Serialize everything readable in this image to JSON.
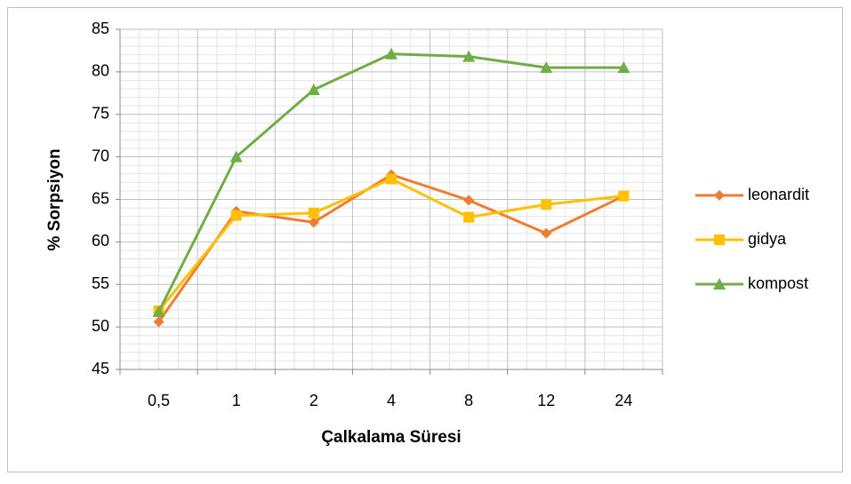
{
  "chart_data": {
    "type": "line",
    "xlabel": "Çalkalama Süresi",
    "ylabel": "% Sorpsiyon",
    "categories": [
      "0,5",
      "1",
      "2",
      "4",
      "8",
      "12",
      "24"
    ],
    "series": [
      {
        "name": "leonardit",
        "color": "#ED7D31",
        "marker": "diamond",
        "values": [
          50.6,
          63.6,
          62.3,
          67.9,
          64.9,
          61.0,
          65.4
        ]
      },
      {
        "name": "gidya",
        "color": "#FFC000",
        "marker": "square",
        "values": [
          51.9,
          63.1,
          63.4,
          67.4,
          62.9,
          64.4,
          65.4
        ]
      },
      {
        "name": "kompost",
        "color": "#70AD47",
        "marker": "triangle",
        "values": [
          51.8,
          70.0,
          77.9,
          82.1,
          81.8,
          80.5,
          80.5
        ]
      }
    ],
    "ylim": [
      45,
      85
    ],
    "yticks": [
      45,
      50,
      55,
      60,
      65,
      70,
      75,
      80,
      85
    ],
    "yminor": [
      46,
      47,
      48,
      49,
      51,
      52,
      53,
      54,
      56,
      57,
      58,
      59,
      61,
      62,
      63,
      64,
      66,
      67,
      68,
      69,
      71,
      72,
      73,
      74,
      76,
      77,
      78,
      79,
      81,
      82,
      83,
      84
    ],
    "grid": true,
    "legend": "right"
  }
}
